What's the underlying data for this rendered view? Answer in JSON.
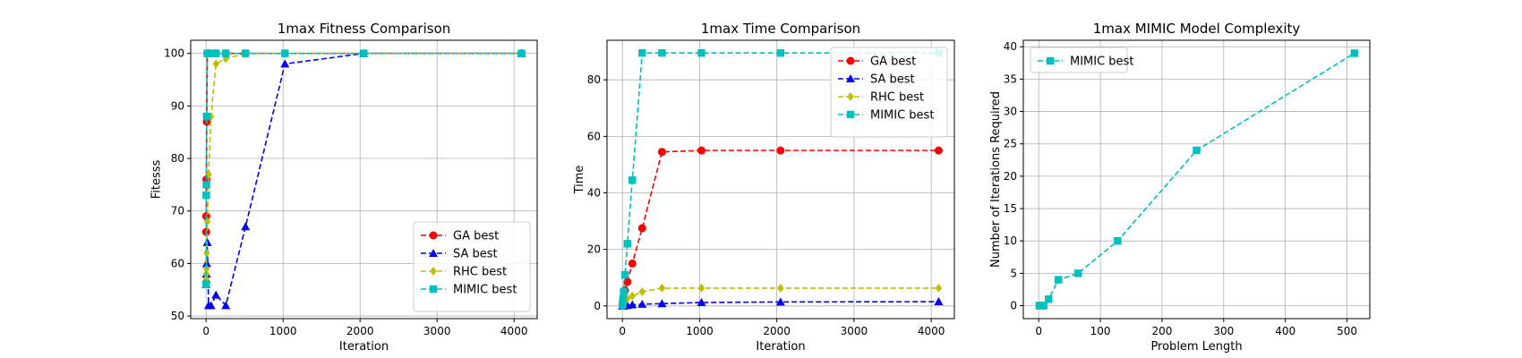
{
  "chart_data": [
    {
      "type": "line",
      "title": "1max Fitness Comparison",
      "xlabel": "Iteration",
      "ylabel": "Fitesss",
      "xlim": [
        -200,
        4300
      ],
      "ylim": [
        49.5,
        102.5
      ],
      "xticks": [
        0,
        1000,
        2000,
        3000,
        4000
      ],
      "yticks": [
        50,
        60,
        70,
        80,
        90,
        100
      ],
      "grid": true,
      "legend": "lower-right",
      "series": [
        {
          "name": "GA best",
          "color": "#ff0000",
          "marker": "circle",
          "x": [
            1,
            2,
            4,
            8,
            16,
            32,
            64,
            128,
            256,
            512,
            1024,
            2048,
            4096
          ],
          "y": [
            66,
            69,
            76,
            87,
            100,
            100,
            100,
            100,
            100,
            100,
            100,
            100,
            100
          ]
        },
        {
          "name": "SA best",
          "color": "#0000ff",
          "marker": "triangle",
          "x": [
            1,
            2,
            4,
            8,
            16,
            32,
            64,
            128,
            256,
            512,
            1024,
            2048,
            4096
          ],
          "y": [
            56,
            57,
            58,
            60,
            64,
            52,
            52,
            54,
            52,
            67,
            98,
            100,
            100
          ]
        },
        {
          "name": "RHC best",
          "color": "#bfbf00",
          "marker": "diamond",
          "x": [
            1,
            2,
            4,
            8,
            16,
            32,
            64,
            128,
            256,
            512,
            1024,
            2048,
            4096
          ],
          "y": [
            57,
            58,
            59,
            62,
            68,
            77,
            88,
            98,
            99,
            100,
            100,
            100,
            100
          ]
        },
        {
          "name": "MIMIC best",
          "color": "#00bfbf",
          "marker": "square",
          "x": [
            1,
            2,
            4,
            8,
            16,
            32,
            64,
            128,
            256,
            512,
            1024,
            2048,
            4096
          ],
          "y": [
            56,
            73,
            75,
            88,
            100,
            100,
            100,
            100,
            100,
            100,
            100,
            100,
            100
          ]
        }
      ]
    },
    {
      "type": "line",
      "title": "1max Time Comparison",
      "xlabel": "Iteration",
      "ylabel": "Time",
      "xlim": [
        -200,
        4300
      ],
      "ylim": [
        -4.5,
        94
      ],
      "xticks": [
        0,
        1000,
        2000,
        3000,
        4000
      ],
      "yticks": [
        0,
        20,
        40,
        60,
        80
      ],
      "grid": true,
      "legend": "top-right",
      "series": [
        {
          "name": "GA best",
          "color": "#ff0000",
          "marker": "circle",
          "x": [
            1,
            2,
            4,
            8,
            16,
            32,
            64,
            128,
            256,
            512,
            1024,
            2048,
            4096
          ],
          "y": [
            0.1,
            0.3,
            0.6,
            1.3,
            2.7,
            5.5,
            8.5,
            15,
            27.5,
            54.5,
            55,
            55,
            55
          ]
        },
        {
          "name": "SA best",
          "color": "#0000ff",
          "marker": "triangle",
          "x": [
            1,
            2,
            4,
            8,
            16,
            32,
            64,
            128,
            256,
            512,
            1024,
            2048,
            4096
          ],
          "y": [
            0,
            0,
            0,
            0,
            0.05,
            0.1,
            0.2,
            0.4,
            0.6,
            0.8,
            1.2,
            1.4,
            1.5
          ]
        },
        {
          "name": "RHC best",
          "color": "#bfbf00",
          "marker": "diamond",
          "x": [
            1,
            2,
            4,
            8,
            16,
            32,
            64,
            128,
            256,
            512,
            1024,
            2048,
            4096
          ],
          "y": [
            0,
            0.1,
            0.2,
            0.4,
            0.8,
            1.5,
            2.5,
            3.5,
            5,
            6.3,
            6.3,
            6.3,
            6.3
          ]
        },
        {
          "name": "MIMIC best",
          "color": "#00bfbf",
          "marker": "square",
          "x": [
            1,
            2,
            4,
            8,
            16,
            32,
            64,
            128,
            256,
            512,
            1024,
            2048,
            4096
          ],
          "y": [
            0.2,
            0.6,
            1.2,
            2.5,
            5,
            11,
            22,
            44.5,
            89.5,
            89.5,
            89.5,
            89.5,
            89.5
          ]
        }
      ]
    },
    {
      "type": "line",
      "title": "1max MIMIC Model Complexity",
      "xlabel": "Problem Length",
      "ylabel": "Number of Iterations Required",
      "xlim": [
        -25,
        537
      ],
      "ylim": [
        -2,
        41
      ],
      "xticks": [
        0,
        100,
        200,
        300,
        400,
        500
      ],
      "yticks": [
        0,
        5,
        10,
        15,
        20,
        25,
        30,
        35,
        40
      ],
      "grid": true,
      "legend": "top-left",
      "series": [
        {
          "name": "MIMIC best",
          "color": "#00bfbf",
          "marker": "square",
          "x": [
            1,
            2,
            4,
            8,
            16,
            32,
            64,
            128,
            256,
            512
          ],
          "y": [
            0,
            0,
            0,
            0,
            1,
            4,
            5,
            10,
            24,
            39
          ]
        }
      ]
    }
  ]
}
